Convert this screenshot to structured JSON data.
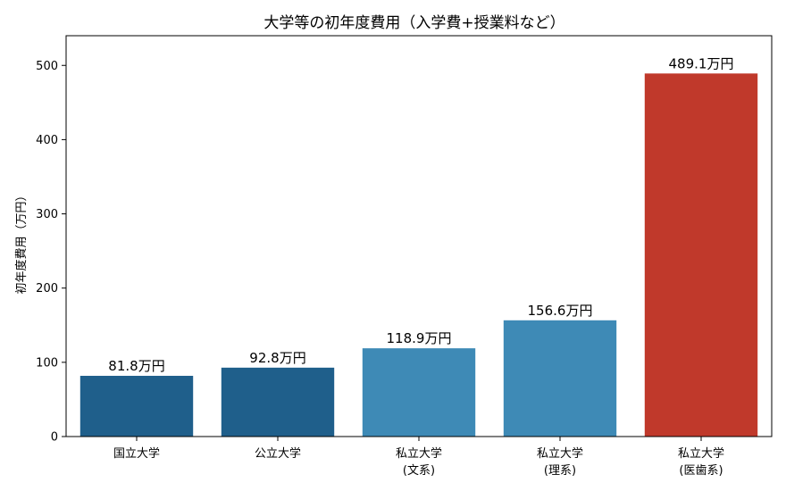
{
  "chart_data": {
    "type": "bar",
    "title": "大学等の初年度費用（入学費+授業料など）",
    "xlabel": "",
    "ylabel": "初年度費用（万円）",
    "ylim": [
      0,
      540
    ],
    "yticks": [
      0,
      100,
      200,
      300,
      400,
      500
    ],
    "grid": false,
    "categories": [
      [
        "国立大学"
      ],
      [
        "公立大学"
      ],
      [
        "私立大学",
        "(文系)"
      ],
      [
        "私立大学",
        "(理系)"
      ],
      [
        "私立大学",
        "(医歯系)"
      ]
    ],
    "values": [
      81.8,
      92.8,
      118.9,
      156.6,
      489.1
    ],
    "data_labels": [
      "81.8万円",
      "92.8万円",
      "118.9万円",
      "156.6万円",
      "489.1万円"
    ],
    "bar_colors": [
      "#1f5f8b",
      "#1f5f8b",
      "#3e8ab6",
      "#3e8ab6",
      "#c0392b"
    ]
  }
}
